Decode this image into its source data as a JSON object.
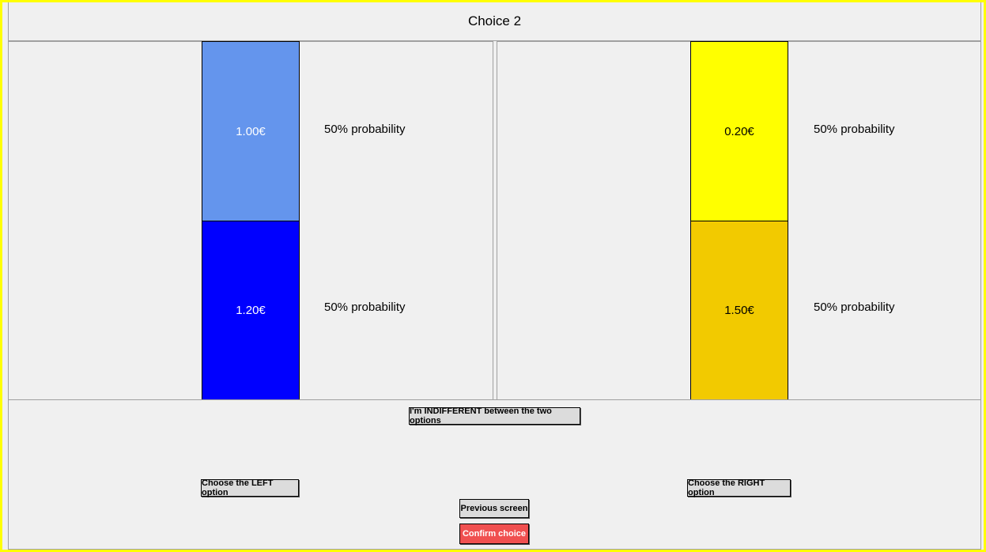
{
  "header": {
    "title": "Choice 2"
  },
  "options": [
    {
      "outcomes": [
        {
          "amount": "1.00€",
          "probability": "50% probability"
        },
        {
          "amount": "1.20€",
          "probability": "50% probability"
        }
      ]
    },
    {
      "outcomes": [
        {
          "amount": "0.20€",
          "probability": "50% probability"
        },
        {
          "amount": "1.50€",
          "probability": "50% probability"
        }
      ]
    }
  ],
  "buttons": {
    "indifferent": "I'm INDIFFERENT between the two options",
    "left": "Choose the LEFT option",
    "right": "Choose the RIGHT option",
    "previous": "Previous screen",
    "confirm": "Confirm choice"
  }
}
